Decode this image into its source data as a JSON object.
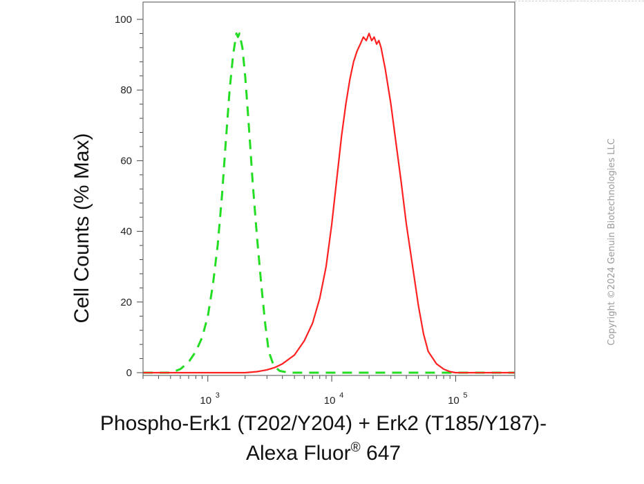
{
  "chart_data": {
    "type": "line",
    "title": "",
    "ylabel": "Cell Counts (% Max)",
    "xlabel_line1": "Phospho-Erk1 (T202/Y204) + Erk2 (T185/Y187)-",
    "xlabel_line2_main": "Alexa Fluor",
    "xlabel_line2_mark": "®",
    "xlabel_line2_tail": " 647",
    "xscale": "log",
    "xlim": [
      300,
      300000
    ],
    "ylim": [
      0,
      100
    ],
    "yticks": [
      0,
      20,
      40,
      60,
      80,
      100
    ],
    "yticklabels": [
      "0",
      "20",
      "40",
      "60",
      "80",
      "100"
    ],
    "xticks": [
      1000,
      10000,
      100000
    ],
    "xtick_base": [
      "10",
      "10",
      "10"
    ],
    "xtick_exp": [
      "3",
      "4",
      "5"
    ],
    "grid": false,
    "series": [
      {
        "style": "dashed",
        "color": "#22dd22",
        "x": [
          300,
          500,
          600,
          700,
          800,
          900,
          1000,
          1100,
          1200,
          1300,
          1400,
          1500,
          1600,
          1700,
          1750,
          1800,
          1900,
          2000,
          2100,
          2200,
          2300,
          2500,
          2700,
          2900,
          3100,
          3400,
          3800,
          4500,
          300000
        ],
        "y": [
          0,
          0,
          1,
          3,
          6,
          10,
          16,
          25,
          36,
          50,
          66,
          80,
          90,
          96,
          95,
          96,
          92,
          84,
          74,
          64,
          54,
          38,
          25,
          14,
          6,
          2,
          0.5,
          0,
          0
        ]
      },
      {
        "style": "solid",
        "color": "#ff2020",
        "x": [
          300,
          2000,
          2500,
          3000,
          3500,
          4000,
          5000,
          6000,
          7000,
          8000,
          9000,
          10000,
          11000,
          12000,
          13000,
          14000,
          15000,
          16000,
          17000,
          18000,
          19000,
          20000,
          21000,
          22000,
          23000,
          24000,
          25000,
          27000,
          30000,
          33000,
          36000,
          40000,
          45000,
          50000,
          55000,
          60000,
          70000,
          80000,
          90000,
          100000,
          300000
        ],
        "y": [
          0,
          0,
          0.3,
          0.8,
          1.5,
          2.5,
          5,
          9,
          14,
          21,
          30,
          42,
          55,
          67,
          76,
          83,
          88,
          91,
          93,
          95,
          94,
          96,
          94,
          95,
          93,
          94,
          92,
          86,
          76,
          65,
          55,
          42,
          30,
          19,
          11,
          6,
          2.5,
          1,
          0.3,
          0,
          0
        ]
      }
    ]
  },
  "copyright": "Copyright ©2024 Genuin Biotechnologies LLC"
}
